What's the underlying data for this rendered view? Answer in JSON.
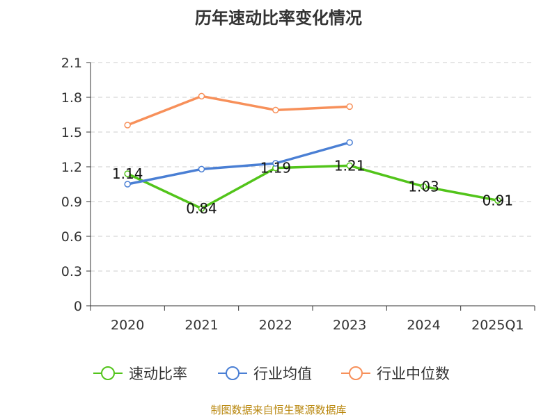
{
  "chart_data": {
    "type": "line",
    "title": "历年速动比率变化情况",
    "categories": [
      "2020",
      "2021",
      "2022",
      "2023",
      "2024",
      "2025Q1"
    ],
    "yticks": [
      "0",
      "0.3",
      "0.6",
      "0.9",
      "1.2",
      "1.5",
      "1.8",
      "2.1"
    ],
    "ylim": [
      0,
      2.1
    ],
    "grid": true,
    "legend_position": "bottom",
    "series": [
      {
        "name": "速动比率",
        "color": "#52c41a",
        "values": [
          1.14,
          0.84,
          1.19,
          1.21,
          1.03,
          0.91
        ],
        "labels": [
          "1.14",
          "0.84",
          "1.19",
          "1.21",
          "1.03",
          "0.91"
        ]
      },
      {
        "name": "行业均值",
        "color": "#4a7fd4",
        "values": [
          1.05,
          1.18,
          1.23,
          1.41,
          null,
          null
        ]
      },
      {
        "name": "行业中位数",
        "color": "#f7905a",
        "values": [
          1.56,
          1.81,
          1.69,
          1.72,
          null,
          null
        ]
      }
    ]
  },
  "source": "制图数据来自恒生聚源数据库"
}
